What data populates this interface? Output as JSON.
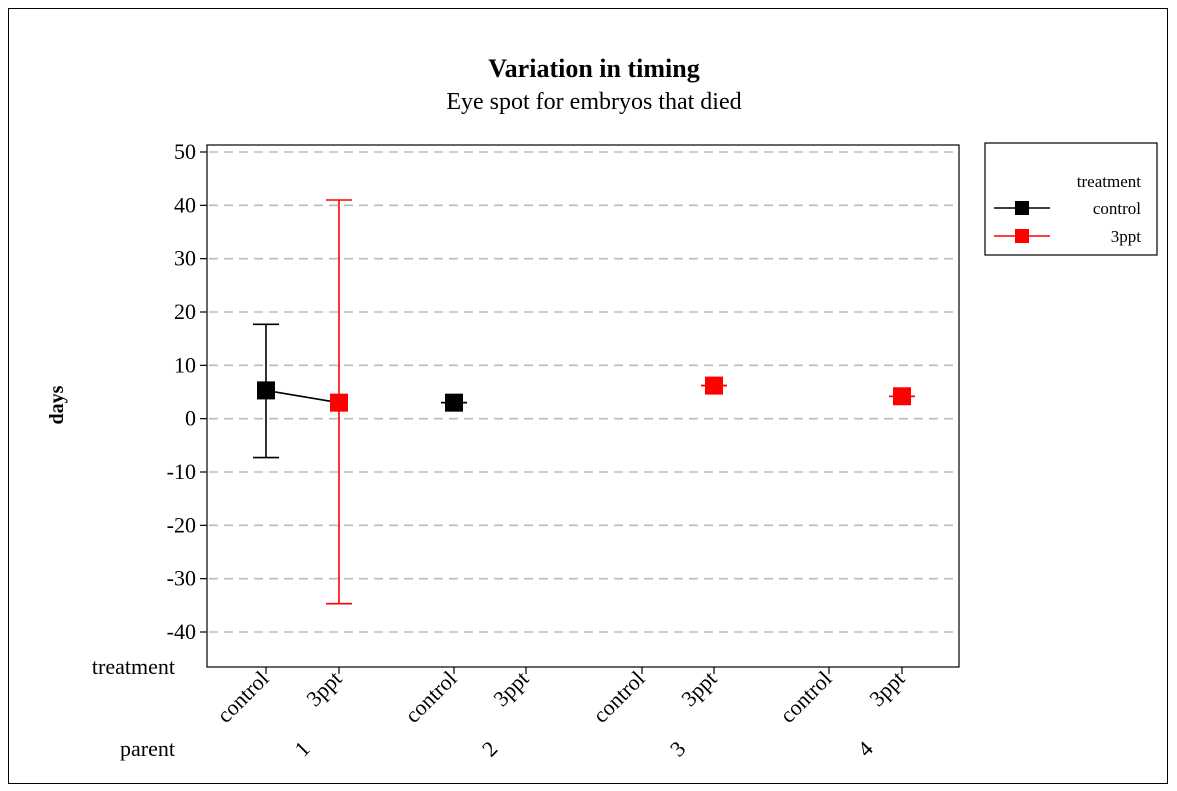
{
  "chart_data": {
    "type": "scatter",
    "title": "Variation in timing",
    "subtitle": "Eye spot for embryos that died",
    "ylabel": "days",
    "ylim": [
      -40,
      50
    ],
    "yticks": [
      50,
      40,
      30,
      20,
      10,
      0,
      -10,
      -20,
      -30,
      -40
    ],
    "ytick_labels": [
      "50",
      "40",
      "30",
      "20",
      "10",
      "0",
      "-10",
      "-20",
      "-30",
      "-40"
    ],
    "grid": "horizontal dashed",
    "x_levels": [
      {
        "treatment": "control",
        "parent": "1"
      },
      {
        "treatment": "3ppt",
        "parent": "1"
      },
      {
        "treatment": "control",
        "parent": "2"
      },
      {
        "treatment": "3ppt",
        "parent": "2"
      },
      {
        "treatment": "control",
        "parent": "3"
      },
      {
        "treatment": "3ppt",
        "parent": "3"
      },
      {
        "treatment": "control",
        "parent": "4"
      },
      {
        "treatment": "3ppt",
        "parent": "4"
      }
    ],
    "x_row_labels": {
      "treatment": "treatment",
      "parent": "parent"
    },
    "parents": [
      "1",
      "2",
      "3",
      "4"
    ],
    "legend": {
      "title": "treatment",
      "position": "right",
      "entries": [
        {
          "name": "control",
          "color": "#000000"
        },
        {
          "name": "3ppt",
          "color": "#ff0000"
        }
      ]
    },
    "points": [
      {
        "parent": "1",
        "treatment": "control",
        "mean": 5.3,
        "lower": -7.3,
        "upper": 17.7
      },
      {
        "parent": "1",
        "treatment": "3ppt",
        "mean": 3.0,
        "lower": -34.7,
        "upper": 41.0
      },
      {
        "parent": "2",
        "treatment": "control",
        "mean": 3.0,
        "lower": 3.0,
        "upper": 3.0
      },
      {
        "parent": "3",
        "treatment": "3ppt",
        "mean": 6.2,
        "lower": 6.2,
        "upper": 6.2
      },
      {
        "parent": "4",
        "treatment": "3ppt",
        "mean": 4.2,
        "lower": 4.2,
        "upper": 4.2
      }
    ],
    "connected": [
      {
        "parent": "1",
        "from": "control",
        "to": "3ppt"
      }
    ],
    "colors": {
      "control": "#000000",
      "3ppt": "#ff0000",
      "grid": "#bbbbbb"
    }
  }
}
